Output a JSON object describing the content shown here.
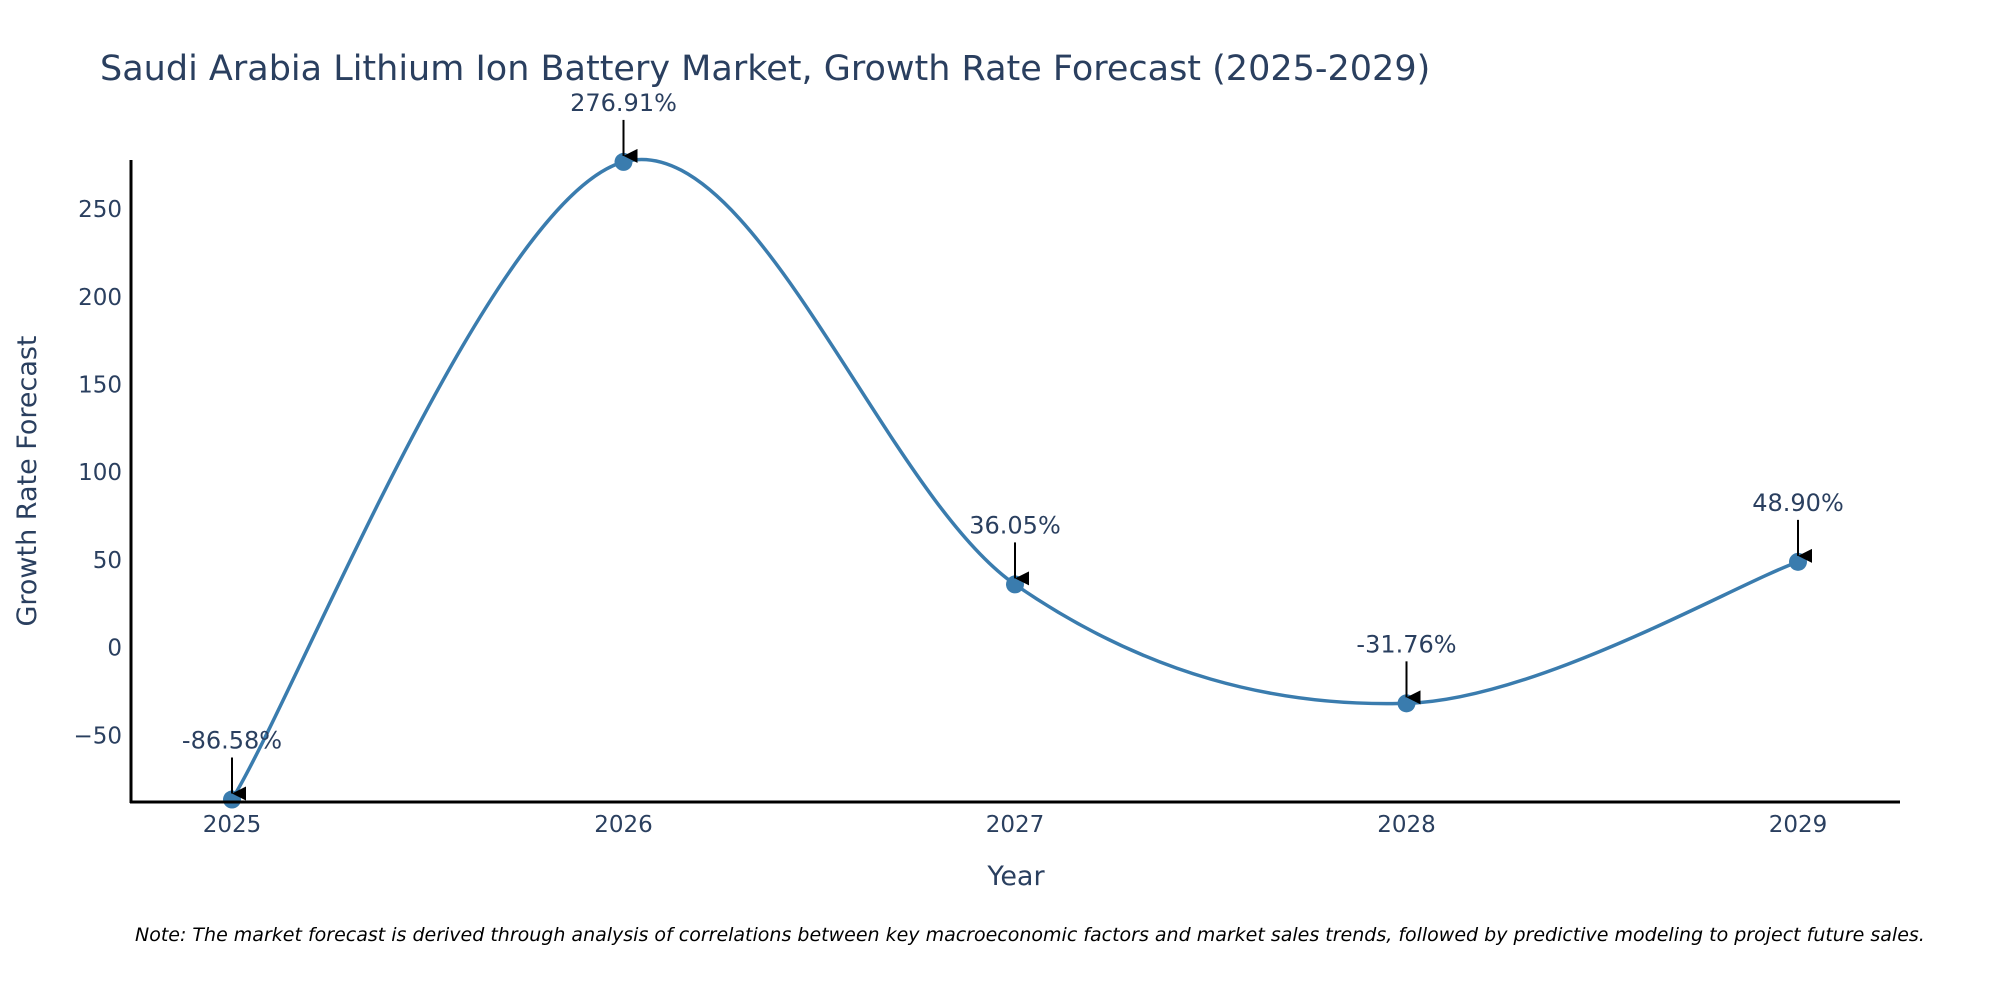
{
  "chart_data": {
    "type": "line",
    "title": "Saudi Arabia Lithium Ion Battery Market, Growth Rate Forecast (2025-2029)",
    "xlabel": "Year",
    "ylabel": "Growth Rate Forecast",
    "categories": [
      "2025",
      "2026",
      "2027",
      "2028",
      "2029"
    ],
    "series": [
      {
        "name": "Growth Rate Forecast",
        "values": [
          -86.58,
          276.91,
          36.05,
          -31.76,
          48.9
        ],
        "labels": [
          "-86.58%",
          "276.91%",
          "36.05%",
          "-31.76%",
          "48.90%"
        ],
        "color": "#3a7cae"
      }
    ],
    "ylim": [
      -88,
      278
    ],
    "yticks": [
      -50,
      0,
      50,
      100,
      150,
      200,
      250
    ],
    "ytick_labels": [
      "−50",
      "0",
      "50",
      "100",
      "150",
      "200",
      "250"
    ],
    "grid": false,
    "line_shape": "spline",
    "axis_color": "#000000",
    "text_color": "#2a3f5f",
    "note": "Note: The market forecast is derived through analysis of correlations between key macroeconomic factors and market sales trends, followed by predictive modeling to project future sales."
  }
}
